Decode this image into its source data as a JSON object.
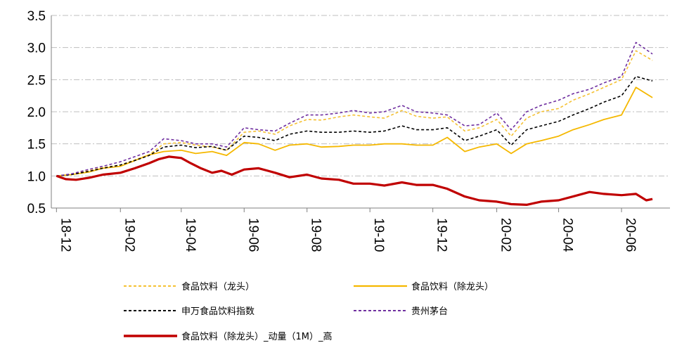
{
  "chart_data": {
    "type": "line",
    "title": "",
    "xlabel": "",
    "ylabel": "",
    "ylim": [
      0.5,
      3.5
    ],
    "yticks": [
      "3.5",
      "3.0",
      "2.5",
      "2.0",
      "1.5",
      "1.0",
      "0.5"
    ],
    "x_tick_labels": [
      "18-12",
      "19-02",
      "19-04",
      "19-06",
      "19-08",
      "19-10",
      "19-12",
      "20-02",
      "20-04",
      "20-06"
    ],
    "x_tick_dates": [
      "2018-12-01",
      "2019-02-01",
      "2019-04-01",
      "2019-06-01",
      "2019-08-01",
      "2019-10-01",
      "2019-12-01",
      "2020-02-01",
      "2020-04-01",
      "2020-06-01"
    ],
    "grid": "horizontal dash-dot",
    "legend_position": "bottom",
    "series": [
      {
        "name": "食品饮料（龙头）",
        "color": "#f5c133",
        "style": "dashed",
        "points": [
          [
            "2018-12-01",
            1.0
          ],
          [
            "2018-12-15",
            1.02
          ],
          [
            "2019-01-01",
            1.08
          ],
          [
            "2019-01-15",
            1.13
          ],
          [
            "2019-02-01",
            1.17
          ],
          [
            "2019-02-15",
            1.25
          ],
          [
            "2019-03-01",
            1.33
          ],
          [
            "2019-03-15",
            1.5
          ],
          [
            "2019-04-01",
            1.52
          ],
          [
            "2019-04-15",
            1.48
          ],
          [
            "2019-05-01",
            1.45
          ],
          [
            "2019-05-15",
            1.4
          ],
          [
            "2019-06-01",
            1.68
          ],
          [
            "2019-06-15",
            1.7
          ],
          [
            "2019-07-01",
            1.65
          ],
          [
            "2019-07-15",
            1.78
          ],
          [
            "2019-08-01",
            1.88
          ],
          [
            "2019-08-15",
            1.87
          ],
          [
            "2019-09-01",
            1.92
          ],
          [
            "2019-09-15",
            1.95
          ],
          [
            "2019-10-01",
            1.92
          ],
          [
            "2019-10-15",
            1.9
          ],
          [
            "2019-11-01",
            2.02
          ],
          [
            "2019-11-15",
            1.93
          ],
          [
            "2019-12-01",
            1.9
          ],
          [
            "2019-12-15",
            1.92
          ],
          [
            "2020-01-01",
            1.7
          ],
          [
            "2020-01-15",
            1.75
          ],
          [
            "2020-02-01",
            1.88
          ],
          [
            "2020-02-15",
            1.62
          ],
          [
            "2020-03-01",
            1.9
          ],
          [
            "2020-03-15",
            2.0
          ],
          [
            "2020-04-01",
            2.05
          ],
          [
            "2020-04-15",
            2.18
          ],
          [
            "2020-05-01",
            2.28
          ],
          [
            "2020-05-15",
            2.38
          ],
          [
            "2020-06-01",
            2.5
          ],
          [
            "2020-06-15",
            2.95
          ],
          [
            "2020-07-01",
            2.8
          ]
        ]
      },
      {
        "name": "食品饮料（除龙头）",
        "color": "#f5b800",
        "style": "solid",
        "points": [
          [
            "2018-12-01",
            1.0
          ],
          [
            "2018-12-15",
            1.02
          ],
          [
            "2019-01-01",
            1.06
          ],
          [
            "2019-01-15",
            1.12
          ],
          [
            "2019-02-01",
            1.15
          ],
          [
            "2019-02-15",
            1.24
          ],
          [
            "2019-03-01",
            1.33
          ],
          [
            "2019-03-15",
            1.38
          ],
          [
            "2019-04-01",
            1.4
          ],
          [
            "2019-04-15",
            1.35
          ],
          [
            "2019-05-01",
            1.38
          ],
          [
            "2019-05-15",
            1.32
          ],
          [
            "2019-06-01",
            1.52
          ],
          [
            "2019-06-15",
            1.5
          ],
          [
            "2019-07-01",
            1.4
          ],
          [
            "2019-07-15",
            1.48
          ],
          [
            "2019-08-01",
            1.5
          ],
          [
            "2019-08-15",
            1.45
          ],
          [
            "2019-09-01",
            1.46
          ],
          [
            "2019-09-15",
            1.48
          ],
          [
            "2019-10-01",
            1.48
          ],
          [
            "2019-10-15",
            1.5
          ],
          [
            "2019-11-01",
            1.5
          ],
          [
            "2019-11-15",
            1.48
          ],
          [
            "2019-12-01",
            1.48
          ],
          [
            "2019-12-15",
            1.6
          ],
          [
            "2020-01-01",
            1.38
          ],
          [
            "2020-01-15",
            1.45
          ],
          [
            "2020-02-01",
            1.5
          ],
          [
            "2020-02-15",
            1.35
          ],
          [
            "2020-03-01",
            1.5
          ],
          [
            "2020-03-15",
            1.55
          ],
          [
            "2020-04-01",
            1.62
          ],
          [
            "2020-04-15",
            1.72
          ],
          [
            "2020-05-01",
            1.8
          ],
          [
            "2020-05-15",
            1.88
          ],
          [
            "2020-06-01",
            1.95
          ],
          [
            "2020-06-15",
            2.38
          ],
          [
            "2020-07-01",
            2.22
          ]
        ]
      },
      {
        "name": "申万食品饮料指数",
        "color": "#000000",
        "style": "dashed",
        "points": [
          [
            "2018-12-01",
            1.0
          ],
          [
            "2018-12-15",
            1.02
          ],
          [
            "2019-01-01",
            1.07
          ],
          [
            "2019-01-15",
            1.12
          ],
          [
            "2019-02-01",
            1.17
          ],
          [
            "2019-02-15",
            1.24
          ],
          [
            "2019-03-01",
            1.32
          ],
          [
            "2019-03-15",
            1.45
          ],
          [
            "2019-04-01",
            1.48
          ],
          [
            "2019-04-15",
            1.44
          ],
          [
            "2019-05-01",
            1.46
          ],
          [
            "2019-05-15",
            1.4
          ],
          [
            "2019-06-01",
            1.62
          ],
          [
            "2019-06-15",
            1.6
          ],
          [
            "2019-07-01",
            1.55
          ],
          [
            "2019-07-15",
            1.65
          ],
          [
            "2019-08-01",
            1.7
          ],
          [
            "2019-08-15",
            1.68
          ],
          [
            "2019-09-01",
            1.68
          ],
          [
            "2019-09-15",
            1.7
          ],
          [
            "2019-10-01",
            1.68
          ],
          [
            "2019-10-15",
            1.7
          ],
          [
            "2019-11-01",
            1.78
          ],
          [
            "2019-11-15",
            1.72
          ],
          [
            "2019-12-01",
            1.72
          ],
          [
            "2019-12-15",
            1.75
          ],
          [
            "2020-01-01",
            1.55
          ],
          [
            "2020-01-15",
            1.62
          ],
          [
            "2020-02-01",
            1.72
          ],
          [
            "2020-02-15",
            1.48
          ],
          [
            "2020-03-01",
            1.72
          ],
          [
            "2020-03-15",
            1.78
          ],
          [
            "2020-04-01",
            1.85
          ],
          [
            "2020-04-15",
            1.95
          ],
          [
            "2020-05-01",
            2.05
          ],
          [
            "2020-05-15",
            2.15
          ],
          [
            "2020-06-01",
            2.25
          ],
          [
            "2020-06-15",
            2.55
          ],
          [
            "2020-07-01",
            2.48
          ]
        ]
      },
      {
        "name": "贵州茅台",
        "color": "#7030a0",
        "style": "dashed",
        "points": [
          [
            "2018-12-01",
            1.0
          ],
          [
            "2018-12-15",
            1.03
          ],
          [
            "2019-01-01",
            1.1
          ],
          [
            "2019-01-15",
            1.15
          ],
          [
            "2019-02-01",
            1.22
          ],
          [
            "2019-02-15",
            1.3
          ],
          [
            "2019-03-01",
            1.38
          ],
          [
            "2019-03-15",
            1.58
          ],
          [
            "2019-04-01",
            1.55
          ],
          [
            "2019-04-15",
            1.5
          ],
          [
            "2019-05-01",
            1.5
          ],
          [
            "2019-05-15",
            1.45
          ],
          [
            "2019-06-01",
            1.75
          ],
          [
            "2019-06-15",
            1.72
          ],
          [
            "2019-07-01",
            1.7
          ],
          [
            "2019-07-15",
            1.82
          ],
          [
            "2019-08-01",
            1.95
          ],
          [
            "2019-08-15",
            1.95
          ],
          [
            "2019-09-01",
            1.98
          ],
          [
            "2019-09-15",
            2.02
          ],
          [
            "2019-10-01",
            1.98
          ],
          [
            "2019-10-15",
            2.0
          ],
          [
            "2019-11-01",
            2.1
          ],
          [
            "2019-11-15",
            2.0
          ],
          [
            "2019-12-01",
            1.98
          ],
          [
            "2019-12-15",
            1.95
          ],
          [
            "2020-01-01",
            1.78
          ],
          [
            "2020-01-15",
            1.8
          ],
          [
            "2020-02-01",
            1.98
          ],
          [
            "2020-02-15",
            1.72
          ],
          [
            "2020-03-01",
            2.0
          ],
          [
            "2020-03-15",
            2.1
          ],
          [
            "2020-04-01",
            2.18
          ],
          [
            "2020-04-15",
            2.28
          ],
          [
            "2020-05-01",
            2.35
          ],
          [
            "2020-05-15",
            2.45
          ],
          [
            "2020-06-01",
            2.55
          ],
          [
            "2020-06-15",
            3.08
          ],
          [
            "2020-07-01",
            2.9
          ]
        ]
      },
      {
        "name": "食品饮料（除龙头）_动量（1M）_高",
        "color": "#c00000",
        "style": "solid-thick",
        "points": [
          [
            "2018-12-01",
            1.0
          ],
          [
            "2018-12-10",
            0.95
          ],
          [
            "2018-12-20",
            0.94
          ],
          [
            "2019-01-01",
            0.97
          ],
          [
            "2019-01-15",
            1.02
          ],
          [
            "2019-02-01",
            1.05
          ],
          [
            "2019-02-15",
            1.12
          ],
          [
            "2019-03-01",
            1.2
          ],
          [
            "2019-03-10",
            1.26
          ],
          [
            "2019-03-20",
            1.3
          ],
          [
            "2019-04-01",
            1.28
          ],
          [
            "2019-04-10",
            1.2
          ],
          [
            "2019-04-20",
            1.12
          ],
          [
            "2019-05-01",
            1.05
          ],
          [
            "2019-05-10",
            1.08
          ],
          [
            "2019-05-20",
            1.02
          ],
          [
            "2019-06-01",
            1.1
          ],
          [
            "2019-06-15",
            1.12
          ],
          [
            "2019-07-01",
            1.05
          ],
          [
            "2019-07-15",
            0.98
          ],
          [
            "2019-08-01",
            1.02
          ],
          [
            "2019-08-15",
            0.96
          ],
          [
            "2019-09-01",
            0.94
          ],
          [
            "2019-09-15",
            0.88
          ],
          [
            "2019-10-01",
            0.88
          ],
          [
            "2019-10-15",
            0.85
          ],
          [
            "2019-11-01",
            0.9
          ],
          [
            "2019-11-15",
            0.86
          ],
          [
            "2019-12-01",
            0.86
          ],
          [
            "2019-12-15",
            0.8
          ],
          [
            "2020-01-01",
            0.68
          ],
          [
            "2020-01-15",
            0.62
          ],
          [
            "2020-02-01",
            0.6
          ],
          [
            "2020-02-15",
            0.56
          ],
          [
            "2020-03-01",
            0.55
          ],
          [
            "2020-03-15",
            0.6
          ],
          [
            "2020-04-01",
            0.62
          ],
          [
            "2020-04-15",
            0.68
          ],
          [
            "2020-05-01",
            0.75
          ],
          [
            "2020-05-15",
            0.72
          ],
          [
            "2020-06-01",
            0.7
          ],
          [
            "2020-06-15",
            0.72
          ],
          [
            "2020-06-25",
            0.62
          ],
          [
            "2020-07-01",
            0.64
          ]
        ]
      }
    ]
  },
  "legend": [
    {
      "label": "食品饮料（龙头）",
      "color": "#f5c133",
      "style": "dashed"
    },
    {
      "label": "食品饮料（除龙头）",
      "color": "#f5b800",
      "style": "solid"
    },
    {
      "label": "申万食品饮料指数",
      "color": "#000000",
      "style": "dashed"
    },
    {
      "label": "贵州茅台",
      "color": "#7030a0",
      "style": "dashed"
    },
    {
      "label": "食品饮料（除龙头）_动量（1M）_高",
      "color": "#c00000",
      "style": "solid-thick"
    }
  ]
}
